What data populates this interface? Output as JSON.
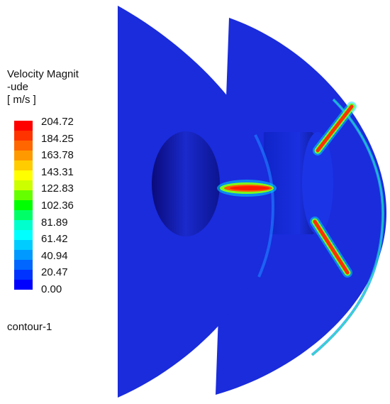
{
  "legend": {
    "title_line1": "Velocity Magnit",
    "title_line2": "-ude",
    "title_line3": "[ m/s ]",
    "ticks": [
      "204.72",
      "184.25",
      "163.78",
      "143.31",
      "122.83",
      "102.36",
      "81.89",
      "61.42",
      "40.94",
      "20.47",
      "0.00"
    ],
    "colors": [
      "#ff0000",
      "#ff3300",
      "#ff6600",
      "#ff9900",
      "#ffcc00",
      "#ffff00",
      "#ccff00",
      "#66ff00",
      "#00ff00",
      "#00ff66",
      "#00ffcc",
      "#00ffff",
      "#00ccff",
      "#0099ff",
      "#0066ff",
      "#0033ff",
      "#0000ff"
    ]
  },
  "caption": "contour-1"
}
